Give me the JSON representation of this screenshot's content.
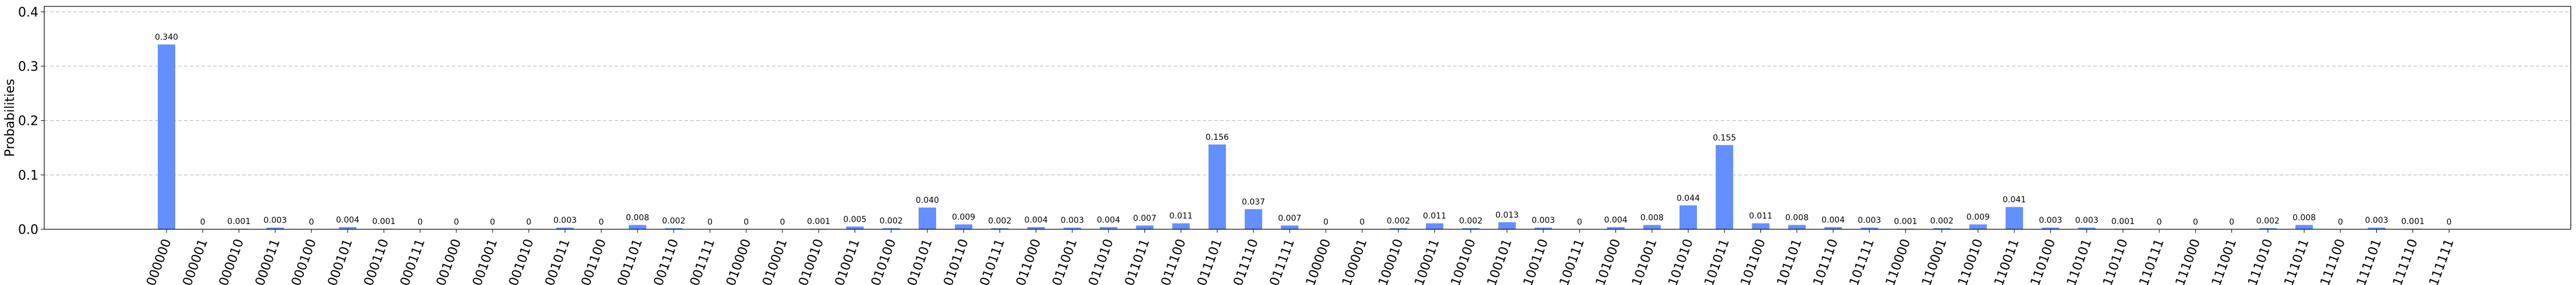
{
  "chart_data": {
    "type": "bar",
    "ylabel": "Probabilities",
    "xlabel": "",
    "title": "",
    "ylim": [
      0,
      0.41
    ],
    "yticks": [
      0.0,
      0.1,
      0.2,
      0.3,
      0.4
    ],
    "ytick_labels": [
      "0.0",
      "0.1",
      "0.2",
      "0.3",
      "0.4"
    ],
    "grid": "horizontal dashed",
    "bar_color": "#648fff",
    "categories": [
      "000000",
      "000001",
      "000010",
      "000011",
      "000100",
      "000101",
      "000110",
      "000111",
      "001000",
      "001001",
      "001010",
      "001011",
      "001100",
      "001101",
      "001110",
      "001111",
      "010000",
      "010001",
      "010010",
      "010011",
      "010100",
      "010101",
      "010110",
      "010111",
      "011000",
      "011001",
      "011010",
      "011011",
      "011100",
      "011101",
      "011110",
      "011111",
      "100000",
      "100001",
      "100010",
      "100011",
      "100100",
      "100101",
      "100110",
      "100111",
      "101000",
      "101001",
      "101010",
      "101011",
      "101100",
      "101101",
      "101110",
      "101111",
      "110000",
      "110001",
      "110010",
      "110011",
      "110100",
      "110101",
      "110110",
      "110111",
      "111000",
      "111001",
      "111010",
      "111011",
      "111100",
      "111101",
      "111110",
      "111111"
    ],
    "values": [
      0.34,
      0,
      0.001,
      0.003,
      0,
      0.004,
      0.001,
      0,
      0,
      0,
      0,
      0.003,
      0,
      0.008,
      0.002,
      0,
      0,
      0,
      0.001,
      0.005,
      0.002,
      0.04,
      0.009,
      0.002,
      0.004,
      0.003,
      0.004,
      0.007,
      0.011,
      0.156,
      0.037,
      0.007,
      0,
      0,
      0.002,
      0.011,
      0.002,
      0.013,
      0.003,
      0,
      0.004,
      0.008,
      0.044,
      0.155,
      0.011,
      0.008,
      0.004,
      0.003,
      0.001,
      0.002,
      0.009,
      0.041,
      0.003,
      0.003,
      0.001,
      0,
      0,
      0,
      0.002,
      0.008,
      0,
      0.003,
      0.001,
      0
    ],
    "value_labels": [
      "0.340",
      "0",
      "0.001",
      "0.003",
      "0",
      "0.004",
      "0.001",
      "0",
      "0",
      "0",
      "0",
      "0.003",
      "0",
      "0.008",
      "0.002",
      "0",
      "0",
      "0",
      "0.001",
      "0.005",
      "0.002",
      "0.040",
      "0.009",
      "0.002",
      "0.004",
      "0.003",
      "0.004",
      "0.007",
      "0.011",
      "0.156",
      "0.037",
      "0.007",
      "0",
      "0",
      "0.002",
      "0.011",
      "0.002",
      "0.013",
      "0.003",
      "0",
      "0.004",
      "0.008",
      "0.044",
      "0.155",
      "0.011",
      "0.008",
      "0.004",
      "0.003",
      "0.001",
      "0.002",
      "0.009",
      "0.041",
      "0.003",
      "0.003",
      "0.001",
      "0",
      "0",
      "0",
      "0.002",
      "0.008",
      "0",
      "0.003",
      "0.001",
      "0"
    ]
  }
}
